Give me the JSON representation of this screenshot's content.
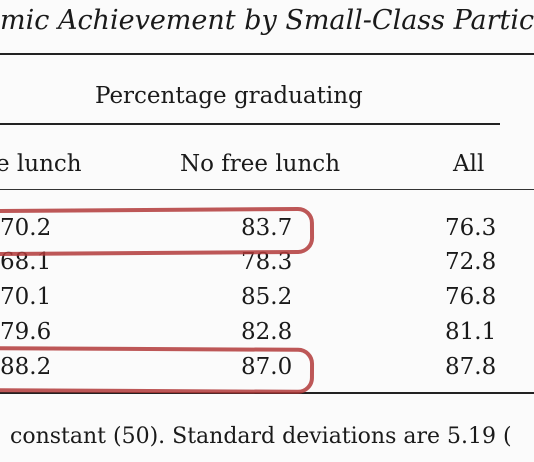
{
  "table": {
    "title": "mic Achievement by Small-Class Partic",
    "span_header": "Percentage graduating",
    "columns": [
      "e lunch",
      "No free lunch",
      "All"
    ],
    "rows": [
      [
        "70.2",
        "83.7",
        "76.3"
      ],
      [
        "68.1",
        "78.3",
        "72.8"
      ],
      [
        "70.1",
        "85.2",
        "76.8"
      ],
      [
        "79.6",
        "82.8",
        "81.1"
      ],
      [
        "88.2",
        "87.0",
        "87.8"
      ]
    ],
    "footnote": "constant (50). Standard deviations are 5.19 ("
  },
  "annotations": {
    "highlight_color": "#b23a3a",
    "highlighted_rows": [
      1,
      5
    ]
  }
}
